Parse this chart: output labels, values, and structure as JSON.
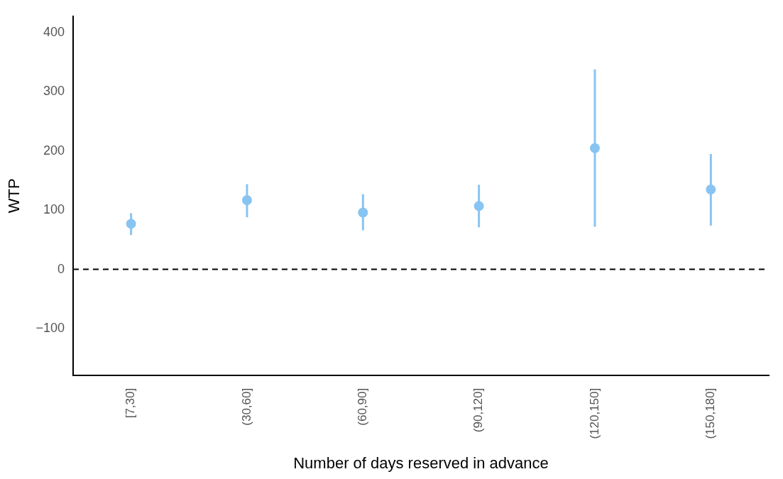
{
  "chart_data": {
    "type": "scatter",
    "xlabel": "Number of days reserved in advance",
    "ylabel": "WTP",
    "categories": [
      "[7,30]",
      "(30,60]",
      "(60,90]",
      "(90,120]",
      "(120,150]",
      "(150,180]"
    ],
    "series": [
      {
        "color": "#88c4f2",
        "values": [
          77,
          117,
          96,
          107,
          205,
          135
        ],
        "errors": [
          [
            58,
            95
          ],
          [
            88,
            144
          ],
          [
            66,
            127
          ],
          [
            71,
            143
          ],
          [
            72,
            338
          ],
          [
            74,
            195
          ]
        ]
      }
    ],
    "ylim": [
      -179,
      428
    ],
    "yticks": [
      -100,
      0,
      100,
      200,
      300,
      400
    ],
    "grid": false,
    "legend": false,
    "marker": "circle",
    "ref_lines": [
      {
        "axis": "y",
        "value": 0,
        "color": "#000000",
        "line_style": "dashed"
      }
    ]
  }
}
